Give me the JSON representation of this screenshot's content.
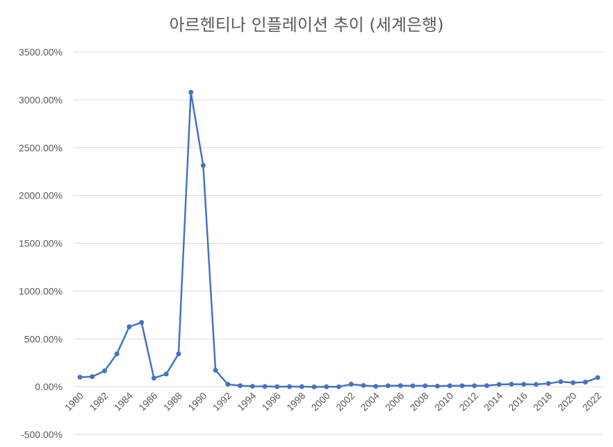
{
  "chart_data": {
    "type": "line",
    "title": "아르헨티나 인플레이션 추이 (세계은행)",
    "xlabel": "",
    "ylabel": "",
    "ylim": [
      -500,
      3500
    ],
    "y_ticks": [
      "3500.00%",
      "3000.00%",
      "2500.00%",
      "2000.00%",
      "1500.00%",
      "1000.00%",
      "500.00%",
      "0.00%",
      "-500.00%"
    ],
    "x_tick_labels": [
      "1980",
      "1982",
      "1984",
      "1986",
      "1988",
      "1990",
      "1992",
      "1994",
      "1996",
      "1998",
      "2000",
      "2002",
      "2004",
      "2006",
      "2008",
      "2010",
      "2012",
      "2014",
      "2016",
      "2018",
      "2020",
      "2022"
    ],
    "grid": true,
    "legend": "none",
    "color": "#4472C4",
    "x": [
      1980,
      1981,
      1982,
      1983,
      1984,
      1985,
      1986,
      1987,
      1988,
      1989,
      1990,
      1991,
      1992,
      1993,
      1994,
      1995,
      1996,
      1997,
      1998,
      1999,
      2000,
      2001,
      2002,
      2003,
      2004,
      2005,
      2006,
      2007,
      2008,
      2009,
      2010,
      2011,
      2012,
      2013,
      2014,
      2015,
      2016,
      2017,
      2018,
      2019,
      2020,
      2021,
      2022
    ],
    "values": [
      100,
      105,
      165,
      344,
      627,
      672,
      90,
      132,
      343,
      3080,
      2314,
      172,
      25,
      11,
      4,
      3,
      0,
      1,
      1,
      -2,
      -1,
      -1,
      26,
      13,
      4,
      10,
      11,
      9,
      9,
      6,
      10,
      10,
      10,
      11,
      24,
      26,
      25,
      24,
      34,
      53,
      42,
      48,
      95
    ]
  }
}
